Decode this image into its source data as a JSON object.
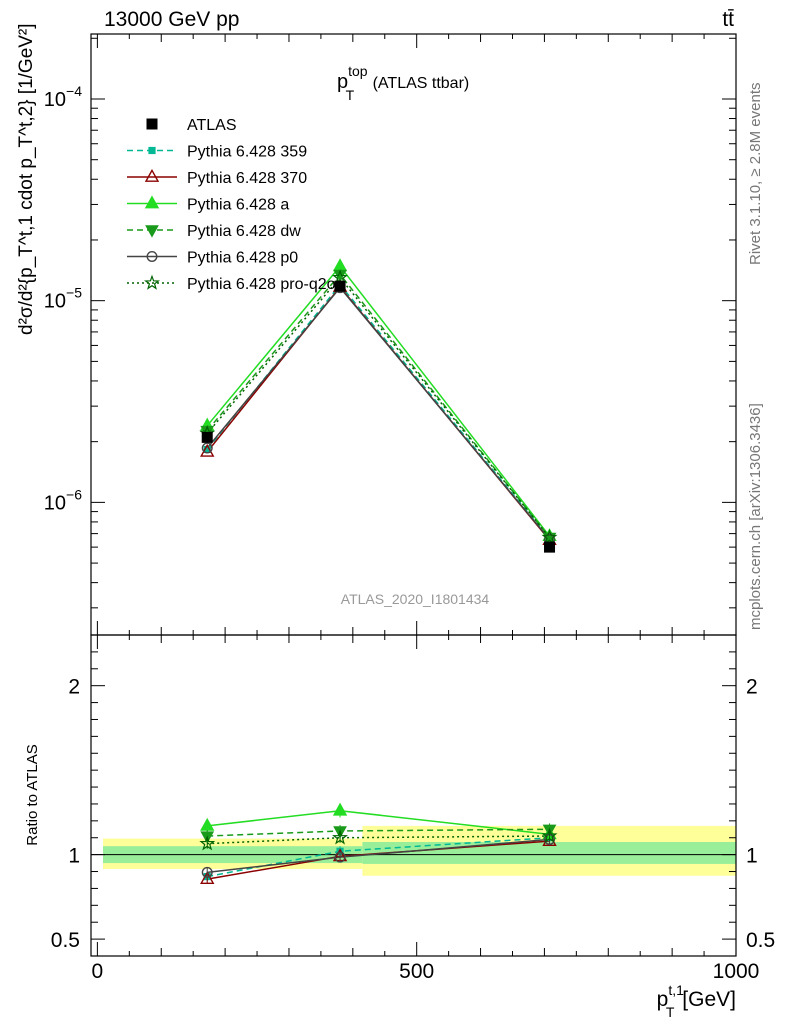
{
  "header": {
    "left": "13000 GeV pp",
    "right": "tt̄"
  },
  "side_labels": {
    "rivet": "Rivet 3.1.10, ≥ 2.8M events",
    "mcplots": "mcplots.cern.ch [arXiv:1306.3436]"
  },
  "analysis_id": "ATLAS_2020_I1801434",
  "chart_data": [
    {
      "type": "line",
      "title_main": "p",
      "title_sup": "top",
      "title_sub": "T",
      "title_rest": " (ATLAS ttbar)",
      "ylabel": "d²σ/d²{p_T^t,1 cdot p_T^t,2} [1/GeV²]",
      "yscale": "log",
      "ylim": [
        2.2e-07,
        0.00021
      ],
      "xlim": [
        -10,
        1000
      ],
      "yticks": [
        {
          "value": 0.0001,
          "base": "10",
          "exp": "−4"
        },
        {
          "value": 1e-05,
          "base": "10",
          "exp": "−5"
        },
        {
          "value": 1e-06,
          "base": "10",
          "exp": "−6"
        }
      ],
      "x": [
        172,
        380,
        708
      ],
      "data": {
        "name": "ATLAS",
        "values": [
          2.1e-06,
          1.18e-05,
          6e-07
        ],
        "marker": "square-filled",
        "color": "#000000"
      },
      "series": [
        {
          "name": "Pythia 6.428 359",
          "values": [
            1.83e-06,
            1.2e-05,
            6.6e-07
          ],
          "color": "#00b894",
          "dash": "6,4",
          "marker": "square-small"
        },
        {
          "name": "Pythia 6.428 370",
          "values": [
            1.78e-06,
            1.17e-05,
            6.5e-07
          ],
          "color": "#8b0000",
          "dash": "",
          "marker": "triangle-open"
        },
        {
          "name": "Pythia 6.428 a",
          "values": [
            2.4e-06,
            1.48e-05,
            6.8e-07
          ],
          "color": "#22dd22",
          "dash": "",
          "marker": "triangle-filled"
        },
        {
          "name": "Pythia 6.428 dw",
          "values": [
            2.27e-06,
            1.35e-05,
            6.7e-07
          ],
          "color": "#1a9a1a",
          "dash": "6,4",
          "marker": "triangle-down"
        },
        {
          "name": "Pythia 6.428 p0",
          "values": [
            1.86e-06,
            1.16e-05,
            6.55e-07
          ],
          "color": "#444444",
          "dash": "",
          "marker": "circle-open"
        },
        {
          "name": "Pythia 6.428 pro-q2o",
          "values": [
            2.2e-06,
            1.3e-05,
            6.7e-07
          ],
          "color": "#006400",
          "dash": "2,3",
          "marker": "star-open"
        }
      ]
    },
    {
      "type": "line",
      "ylabel": "Ratio to ATLAS",
      "xlabel_main": "p",
      "xlabel_sup": "t,1",
      "xlabel_sub": "T",
      "xlabel_rest": " [GeV]",
      "ylim": [
        0.4,
        2.3
      ],
      "xlim": [
        -10,
        1000
      ],
      "xticks": [
        0,
        500,
        1000
      ],
      "yticks": [
        0.5,
        1,
        2
      ],
      "bands": [
        {
          "x0": 0,
          "x1": 415,
          "inner": [
            0.95,
            1.05
          ],
          "outer": [
            0.915,
            1.095
          ]
        },
        {
          "x0": 415,
          "x1": 1000,
          "inner": [
            0.945,
            1.075
          ],
          "outer": [
            0.875,
            1.17
          ]
        }
      ],
      "band_colors": {
        "inner": "#99ee99",
        "outer": "#ffff99"
      },
      "x": [
        172,
        380,
        708
      ],
      "series": [
        {
          "name": "Pythia 6.428 359",
          "values": [
            0.87,
            1.02,
            1.1
          ],
          "err": 0.03,
          "color": "#00b894",
          "dash": "6,4",
          "marker": "square-small"
        },
        {
          "name": "Pythia 6.428 370",
          "values": [
            0.855,
            0.99,
            1.08
          ],
          "err": 0.025,
          "color": "#8b0000",
          "dash": "",
          "marker": "triangle-open"
        },
        {
          "name": "Pythia 6.428 a",
          "values": [
            1.17,
            1.26,
            1.12
          ],
          "err": 0.04,
          "color": "#22dd22",
          "dash": "",
          "marker": "triangle-filled"
        },
        {
          "name": "Pythia 6.428 dw",
          "values": [
            1.11,
            1.14,
            1.15
          ],
          "err": 0.035,
          "color": "#1a9a1a",
          "dash": "6,4",
          "marker": "triangle-down"
        },
        {
          "name": "Pythia 6.428 p0",
          "values": [
            0.895,
            0.985,
            1.09
          ],
          "err": 0.03,
          "color": "#444444",
          "dash": "",
          "marker": "circle-open"
        },
        {
          "name": "Pythia 6.428 pro-q2o",
          "values": [
            1.065,
            1.1,
            1.11
          ],
          "err": 0.03,
          "color": "#006400",
          "dash": "2,3",
          "marker": "star-open"
        }
      ]
    }
  ]
}
